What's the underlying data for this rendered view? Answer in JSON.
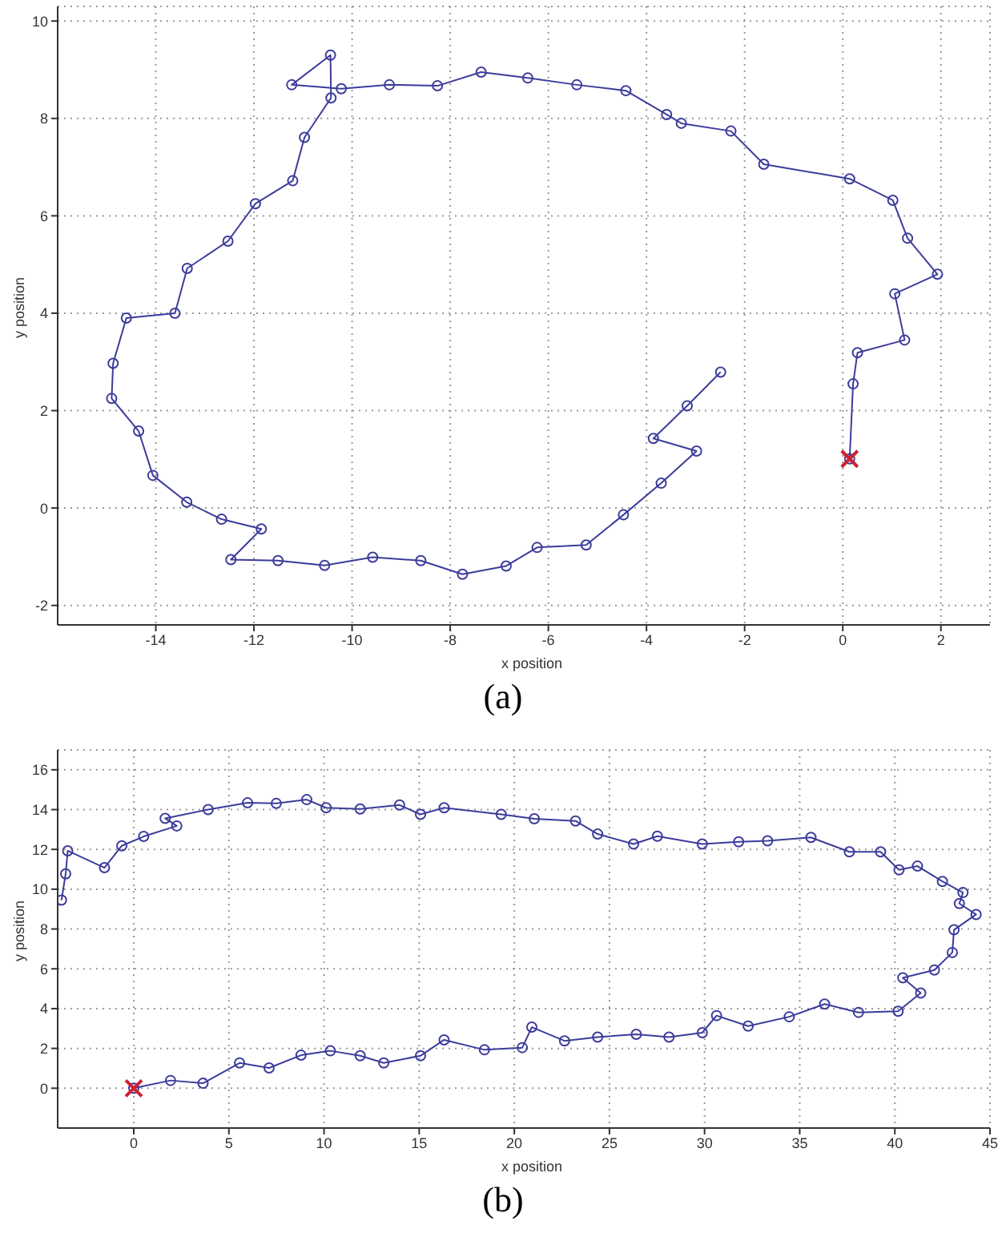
{
  "chart_data": [
    {
      "type": "line",
      "xlabel": "x position",
      "ylabel": "y position",
      "annotations": [
        "(a)"
      ],
      "xlim": [
        -16,
        3
      ],
      "ylim": [
        -2.4,
        10.3
      ],
      "xticks": [
        -14,
        -12,
        -10,
        -8,
        -6,
        -4,
        -2,
        0,
        2
      ],
      "yticks": [
        -2,
        0,
        2,
        4,
        6,
        8,
        10
      ],
      "grid": true,
      "series": [
        {
          "type": "line",
          "color": "#3c3c9c",
          "marker": "circle",
          "line_style": "solid",
          "x": [
            0.14,
            0.21,
            0.3,
            1.26,
            1.06,
            1.93,
            1.32,
            1.02,
            0.14,
            -1.61,
            -2.28,
            -3.29,
            -3.59,
            -4.42,
            -5.42,
            -6.42,
            -7.37,
            -8.26,
            -9.24,
            -10.22,
            -11.23,
            -10.44,
            -10.43,
            -10.97,
            -11.21,
            -11.97,
            -12.53,
            -13.36,
            -13.61,
            -14.6,
            -14.87,
            -14.9,
            -14.35,
            -14.06,
            -13.37,
            -12.66,
            -11.85,
            -12.47,
            -11.51,
            -10.56,
            -9.58,
            -8.6,
            -7.75,
            -6.86,
            -6.23,
            -5.23,
            -4.47,
            -3.7,
            -2.98,
            -3.86,
            -3.17,
            -2.49
          ],
          "values": [
            1.01,
            2.55,
            3.19,
            3.45,
            4.4,
            4.8,
            5.54,
            6.32,
            6.76,
            7.06,
            7.74,
            7.9,
            8.08,
            8.57,
            8.69,
            8.83,
            8.95,
            8.67,
            8.69,
            8.61,
            8.69,
            9.3,
            8.42,
            7.61,
            6.72,
            6.25,
            5.48,
            4.92,
            4,
            3.9,
            2.97,
            2.25,
            1.58,
            0.67,
            0.12,
            -0.23,
            -0.43,
            -1.06,
            -1.08,
            -1.18,
            -1.01,
            -1.08,
            -1.36,
            -1.19,
            -0.81,
            -0.76,
            -0.14,
            0.51,
            1.17,
            1.43,
            2.1,
            2.79
          ]
        },
        {
          "type": "scatter",
          "color": "#cc2233",
          "marker": "cross",
          "x": [
            0.14
          ],
          "values": [
            1.01
          ]
        }
      ]
    },
    {
      "type": "line",
      "xlabel": "x position",
      "ylabel": "y position",
      "annotations": [
        "(b)"
      ],
      "xlim": [
        -4,
        45
      ],
      "ylim": [
        -2,
        17
      ],
      "xticks": [
        0,
        5,
        10,
        15,
        20,
        25,
        30,
        35,
        40,
        45
      ],
      "yticks": [
        0,
        2,
        4,
        6,
        8,
        10,
        12,
        14,
        16
      ],
      "grid": true,
      "series": [
        {
          "type": "line",
          "color": "#3c3c9c",
          "marker": "circle",
          "line_style": "solid",
          "x": [
            0,
            1.93,
            3.64,
            5.56,
            7.11,
            8.79,
            10.33,
            11.9,
            13.14,
            15.07,
            16.31,
            18.43,
            20.42,
            20.92,
            22.64,
            24.38,
            26.41,
            28.13,
            29.88,
            30.63,
            32.29,
            34.45,
            36.31,
            38.09,
            40.17,
            41.36,
            40.42,
            42.08,
            43.02,
            43.11,
            44.27,
            43.39,
            43.58,
            42.5,
            41.19,
            40.22,
            39.25,
            37.61,
            35.59,
            33.31,
            31.79,
            29.88,
            27.52,
            26.27,
            24.38,
            23.22,
            21.05,
            19.31,
            16.31,
            15.07,
            13.97,
            11.9,
            10.11,
            9.09,
            7.49,
            5.98,
            3.91,
            1.65,
            2.26,
            0.52,
            -0.63,
            -1.54,
            -3.47,
            -3.58,
            -3.8
          ],
          "values": [
            0,
            0.39,
            0.25,
            1.27,
            1.02,
            1.66,
            1.88,
            1.63,
            1.27,
            1.63,
            2.43,
            1.93,
            2.04,
            3.07,
            2.38,
            2.57,
            2.71,
            2.57,
            2.79,
            3.65,
            3.12,
            3.59,
            4.23,
            3.81,
            3.87,
            4.78,
            5.55,
            5.94,
            6.82,
            7.96,
            8.73,
            9.28,
            9.83,
            10.39,
            11.16,
            10.97,
            11.88,
            11.88,
            12.6,
            12.43,
            12.38,
            12.27,
            12.66,
            12.27,
            12.77,
            13.43,
            13.54,
            13.76,
            14.09,
            13.76,
            14.23,
            14.03,
            14.09,
            14.5,
            14.31,
            14.34,
            14,
            13.56,
            13.18,
            12.65,
            12.18,
            11.08,
            11.93,
            10.77,
            9.45
          ]
        },
        {
          "type": "scatter",
          "color": "#cc2233",
          "marker": "cross",
          "x": [
            0
          ],
          "values": [
            0
          ]
        }
      ]
    }
  ]
}
